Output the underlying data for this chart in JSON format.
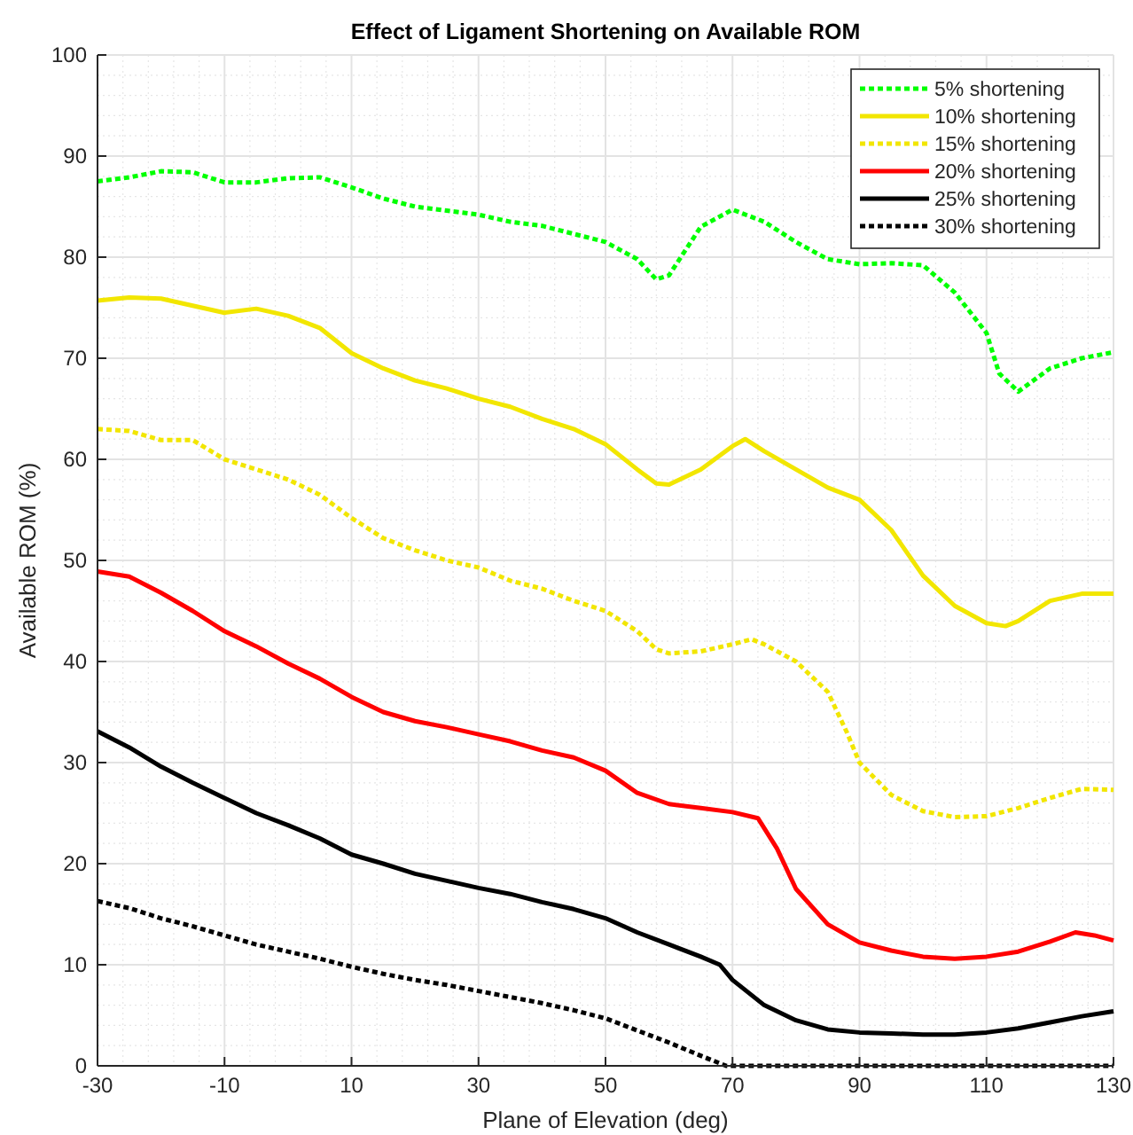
{
  "chart_data": {
    "type": "line",
    "title": "Effect of Ligament Shortening on Available ROM",
    "xlabel": "Plane of Elevation (deg)",
    "ylabel": "Available ROM (%)",
    "xlim": [
      -30,
      130
    ],
    "xticks": [
      -30,
      -10,
      10,
      30,
      50,
      70,
      90,
      110,
      130
    ],
    "ylim": [
      0,
      100
    ],
    "yticks": [
      0,
      10,
      20,
      30,
      40,
      50,
      60,
      70,
      80,
      90,
      100
    ],
    "grid": true,
    "legend": "top right",
    "series": [
      {
        "name": "5% shortening",
        "color": "#00ff00",
        "line_style": "dotted",
        "x": [
          -30,
          -25,
          -20,
          -15,
          -10,
          -5,
          0,
          5,
          10,
          15,
          20,
          25,
          30,
          35,
          40,
          45,
          50,
          55,
          58,
          60,
          65,
          70,
          75,
          80,
          85,
          90,
          95,
          100,
          105,
          110,
          112,
          115,
          120,
          125,
          130
        ],
        "values": [
          87.5,
          87.9,
          88.5,
          88.4,
          87.4,
          87.4,
          87.8,
          87.9,
          86.9,
          85.8,
          85,
          84.6,
          84.2,
          83.5,
          83.1,
          82.3,
          81.5,
          79.8,
          77.8,
          78.2,
          83,
          84.7,
          83.5,
          81.5,
          79.8,
          79.3,
          79.4,
          79.2,
          76.5,
          72.5,
          68.5,
          66.7,
          69,
          70,
          70.6
        ]
      },
      {
        "name": "10% shortening",
        "color": "#f2e600",
        "line_style": "solid",
        "x": [
          -30,
          -25,
          -20,
          -15,
          -10,
          -5,
          0,
          5,
          10,
          15,
          20,
          25,
          30,
          35,
          40,
          45,
          50,
          55,
          58,
          60,
          65,
          70,
          72,
          75,
          80,
          85,
          90,
          95,
          100,
          105,
          110,
          113,
          115,
          120,
          125,
          130
        ],
        "values": [
          75.7,
          76,
          75.9,
          75.2,
          74.5,
          74.9,
          74.2,
          73,
          70.5,
          69,
          67.8,
          67,
          66,
          65.2,
          64,
          63,
          61.5,
          59,
          57.6,
          57.5,
          59,
          61.3,
          62,
          60.8,
          59,
          57.2,
          56,
          53,
          48.5,
          45.5,
          43.8,
          43.5,
          44,
          46,
          46.7,
          46.7
        ]
      },
      {
        "name": "15% shortening",
        "color": "#f2e600",
        "line_style": "dotted",
        "x": [
          -30,
          -25,
          -20,
          -15,
          -10,
          -5,
          0,
          5,
          10,
          15,
          20,
          25,
          30,
          35,
          40,
          45,
          50,
          55,
          58,
          60,
          65,
          70,
          73,
          75,
          80,
          85,
          88,
          90,
          95,
          100,
          105,
          110,
          115,
          120,
          125,
          130
        ],
        "values": [
          63,
          62.8,
          61.9,
          61.9,
          60,
          59,
          58,
          56.5,
          54.2,
          52.2,
          51,
          50,
          49.3,
          48,
          47.2,
          46,
          45,
          43,
          41.2,
          40.8,
          41,
          41.7,
          42.2,
          41.7,
          40,
          37,
          33,
          30,
          26.8,
          25.2,
          24.6,
          24.7,
          25.5,
          26.5,
          27.4,
          27.3
        ]
      },
      {
        "name": "20% shortening",
        "color": "#ff0000",
        "line_style": "solid",
        "x": [
          -30,
          -25,
          -20,
          -15,
          -10,
          -5,
          0,
          5,
          10,
          15,
          20,
          25,
          30,
          35,
          40,
          45,
          50,
          55,
          60,
          65,
          70,
          74,
          77,
          80,
          85,
          90,
          95,
          100,
          105,
          110,
          115,
          120,
          124,
          127,
          130
        ],
        "values": [
          48.9,
          48.4,
          46.8,
          45,
          43,
          41.5,
          39.8,
          38.3,
          36.5,
          35,
          34.1,
          33.5,
          32.8,
          32.1,
          31.2,
          30.5,
          29.2,
          27,
          25.9,
          25.5,
          25.1,
          24.5,
          21.5,
          17.5,
          14,
          12.2,
          11.4,
          10.8,
          10.6,
          10.8,
          11.3,
          12.3,
          13.2,
          12.9,
          12.4
        ]
      },
      {
        "name": "25% shortening",
        "color": "#000000",
        "line_style": "solid",
        "x": [
          -30,
          -25,
          -20,
          -15,
          -10,
          -5,
          0,
          5,
          10,
          15,
          20,
          25,
          30,
          35,
          40,
          45,
          50,
          55,
          60,
          65,
          68,
          70,
          75,
          80,
          85,
          90,
          95,
          100,
          105,
          110,
          115,
          120,
          125,
          130
        ],
        "values": [
          33.1,
          31.5,
          29.6,
          28,
          26.5,
          25,
          23.8,
          22.5,
          20.9,
          20,
          19,
          18.3,
          17.6,
          17,
          16.2,
          15.5,
          14.6,
          13.2,
          12,
          10.8,
          10,
          8.5,
          6,
          4.5,
          3.6,
          3.3,
          3.2,
          3.1,
          3.1,
          3.3,
          3.7,
          4.3,
          4.9,
          5.4
        ]
      },
      {
        "name": "30% shortening",
        "color": "#000000",
        "line_style": "dotted",
        "x": [
          -30,
          -25,
          -20,
          -15,
          -10,
          -5,
          0,
          5,
          10,
          15,
          20,
          25,
          30,
          35,
          40,
          45,
          50,
          55,
          60,
          65,
          69,
          80,
          90,
          100,
          110,
          120,
          130
        ],
        "values": [
          16.3,
          15.6,
          14.6,
          13.8,
          12.9,
          12,
          11.3,
          10.6,
          9.8,
          9.1,
          8.5,
          8,
          7.4,
          6.8,
          6.2,
          5.5,
          4.7,
          3.5,
          2.3,
          1,
          0,
          0,
          0,
          0,
          0,
          0,
          0
        ]
      }
    ]
  }
}
